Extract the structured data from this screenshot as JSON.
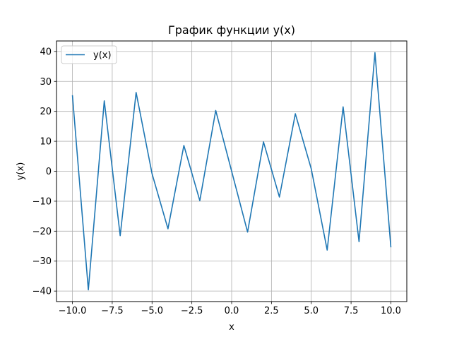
{
  "chart_data": {
    "type": "line",
    "title": "График функции y(x)",
    "xlabel": "x",
    "ylabel": "y(x)",
    "xlim": [
      -11,
      11
    ],
    "ylim": [
      -43.5,
      43.5
    ],
    "grid": true,
    "legend_position": "top-left",
    "x_ticks": [
      -10.0,
      -7.5,
      -5.0,
      -2.5,
      0.0,
      2.5,
      5.0,
      7.5,
      10.0
    ],
    "x_tick_labels": [
      "−10.0",
      "−7.5",
      "−5.0",
      "−2.5",
      "0.0",
      "2.5",
      "5.0",
      "7.5",
      "10.0"
    ],
    "y_ticks": [
      -40,
      -30,
      -20,
      -10,
      0,
      10,
      20,
      30,
      40
    ],
    "y_tick_labels": [
      "−40",
      "−30",
      "−20",
      "−10",
      "0",
      "10",
      "20",
      "30",
      "40"
    ],
    "series": [
      {
        "name": "y(x)",
        "color": "#1f77b4",
        "x": [
          -10,
          -9,
          -8,
          -7,
          -6,
          -5,
          -4,
          -3,
          -2,
          -1,
          0,
          1,
          2,
          3,
          4,
          5,
          6,
          7,
          8,
          9,
          10
        ],
        "y": [
          25.4,
          -39.6,
          23.5,
          -21.5,
          26.3,
          -0.8,
          -19.2,
          8.6,
          -9.8,
          20.3,
          0.0,
          -20.3,
          9.8,
          -8.6,
          19.2,
          0.8,
          -26.3,
          21.5,
          -23.5,
          39.6,
          -25.4
        ]
      }
    ]
  }
}
